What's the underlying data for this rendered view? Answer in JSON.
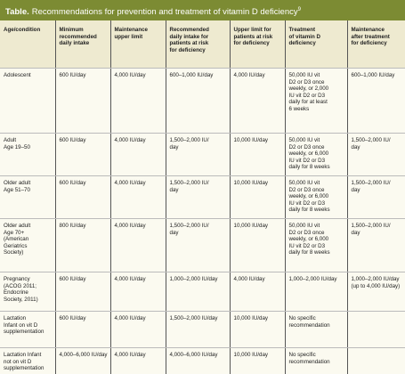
{
  "title": {
    "label": "Table.",
    "text": "Recommendations for prevention and treatment of vitamin D deficiency",
    "ref": "9"
  },
  "table": {
    "headers": [
      "Age/condition",
      "Minimum\nrecommended\ndaily intake",
      "Maintenance\nupper limit",
      "Recommended\ndaily intake for\npatients at risk\nfor deficiency",
      "Upper limit for\npatients at risk\nfor deficiency",
      "Treatment\nof vitamin D\ndeficiency",
      "Maintenance\nafter treatment\nfor deficiency"
    ],
    "rows": [
      [
        "Adolescent",
        "600 IU/day",
        "4,000 IU/day",
        "600–1,000 IU/day",
        "4,000 IU/day",
        "50,000 IU vit\nD2 or D3 once\nweekly, or 2,000\nIU vit D2 or D3\ndaily for at least\n6 weeks",
        "600–1,000 IU/day"
      ],
      [
        "Adult\nAge 19–50",
        "600 IU/day",
        "4,000 IU/day",
        "1,500–2,000 IU/\nday",
        "10,000 IU/day",
        "50,000 IU vit\nD2 or D3 once\nweekly, or 6,000\nIU vit D2 or D3\ndaily for 8 weeks",
        "1,500–2,000 IU/\nday"
      ],
      [
        "Older adult\nAge 51–70",
        "600 IU/day",
        "4,000 IU/day",
        "1,500–2,000 IU/\nday",
        "10,000 IU/day",
        "50,000 IU vit\nD2 or D3 once\nweekly, or 6,000\nIU vit D2 or D3\ndaily for 8 weeks",
        "1,500–2,000 IU/\nday"
      ],
      [
        "Older adult\nAge 70+\n(American\nGeriatrics\nSociety)",
        "800 IU/day",
        "4,000 IU/day",
        "1,500–2,000 IU/\nday",
        "10,000 IU/day",
        "50,000 IU vit\nD2 or D3 once\nweekly, or 6,000\nIU vit D2 or D3\ndaily for 8 weeks",
        "1,500–2,000 IU/\nday"
      ],
      [
        "Pregnancy\n(ACOG 2011;\nEndocrine\nSociety, 2011)",
        "600 IU/day",
        "4,000 IU/day",
        "1,000–2,000 IU/day",
        "4,000 IU/day",
        "1,000–2,000 IU/day",
        "1,000–2,000 IU/day\n(up to 4,000 IU/day)"
      ],
      [
        "Lactation\nInfant on vit D\nsupplementation",
        "600 IU/day",
        "4,000 IU/day",
        "1,500–2,000 IU/day",
        "10,000 IU/day",
        "No specific\nrecommendation"
      ],
      [
        "Lactation Infant\nnot on vit D\nsupplementation",
        "4,000–6,000 IU/day",
        "4,000 IU/day",
        "4,000–6,000 IU/day",
        "10,000 IU/day",
        "No specific\nrecommendation"
      ]
    ]
  }
}
